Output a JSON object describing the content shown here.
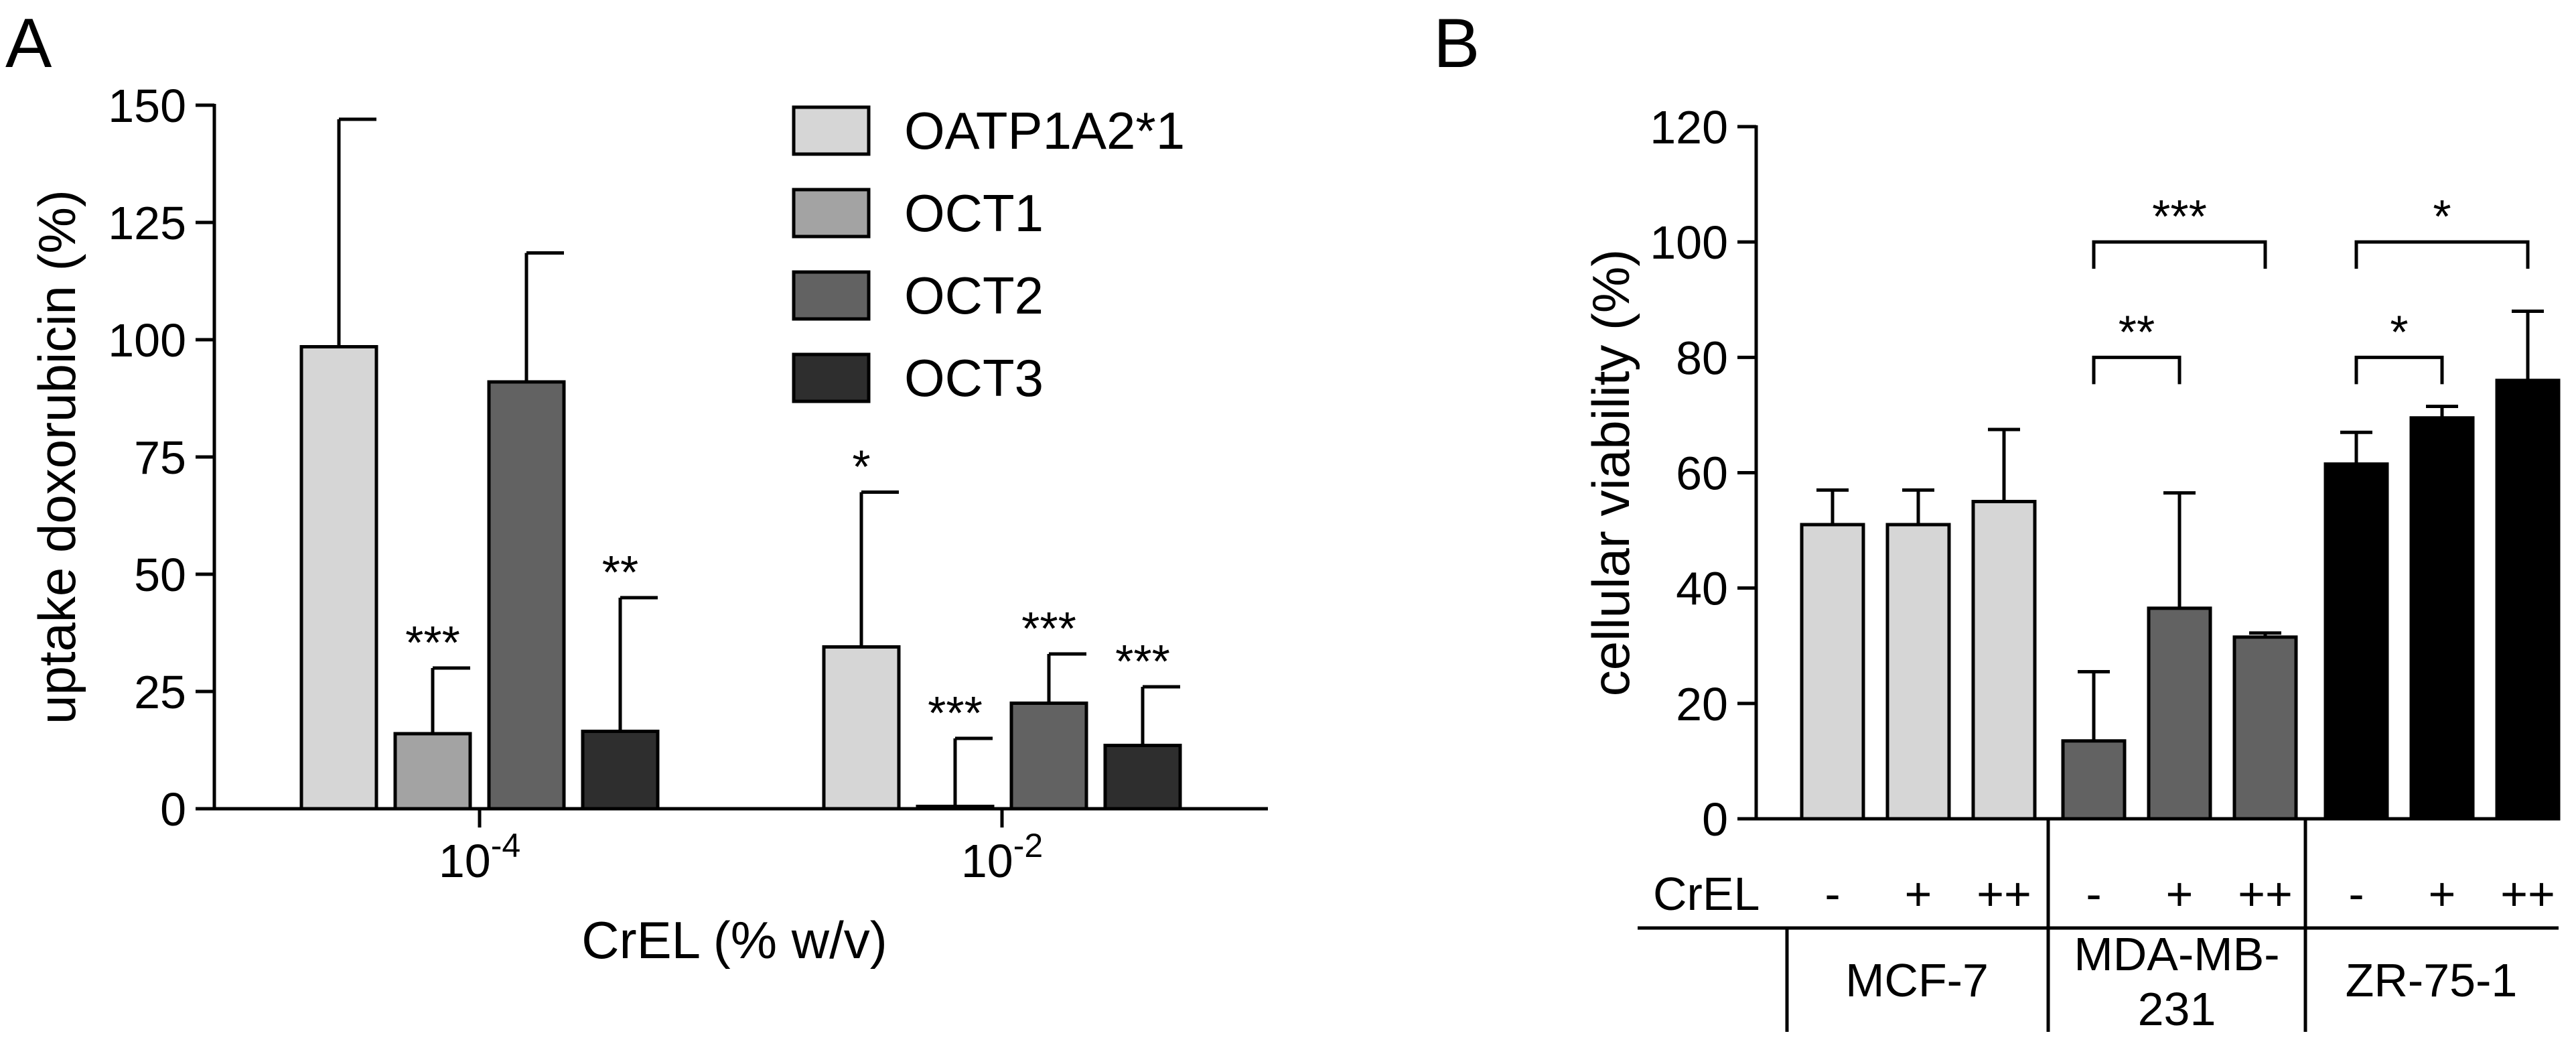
{
  "panels": {
    "a": {
      "letter": "A"
    },
    "b": {
      "letter": "B"
    }
  },
  "colors": {
    "OATP1A2*1": "#d6d6d6",
    "OCT1": "#a3a3a3",
    "OCT2": "#626262",
    "OCT3": "#2e2e2e",
    "MCF-7": "#d6d6d6",
    "MDA-MB-231": "#626262",
    "ZR-75-1": "#000000"
  },
  "chart_data": [
    {
      "type": "bar",
      "panel": "A",
      "xlabel": "CrEL (% w/v)",
      "ylabel": "uptake doxorubicin (%)",
      "ylim": [
        0,
        150
      ],
      "yticks": [
        "0",
        "25",
        "50",
        "75",
        "100",
        "125",
        "150"
      ],
      "categories": [
        {
          "base": "10",
          "exp": "-4"
        },
        {
          "base": "10",
          "exp": "-2"
        }
      ],
      "legend_position": "top-right",
      "series": [
        {
          "name": "OATP1A2*1",
          "values": [
            98.5,
            34.5
          ],
          "errors": [
            48.5,
            33
          ],
          "sig": [
            "",
            "*"
          ]
        },
        {
          "name": "OCT1",
          "values": [
            16,
            0.5
          ],
          "errors": [
            14,
            14.5
          ],
          "sig": [
            "***",
            "***"
          ]
        },
        {
          "name": "OCT2",
          "values": [
            91,
            22.5
          ],
          "errors": [
            27.5,
            10.5
          ],
          "sig": [
            "",
            "***"
          ]
        },
        {
          "name": "OCT3",
          "values": [
            16.5,
            13.5
          ],
          "errors": [
            28.5,
            12.5
          ],
          "sig": [
            "**",
            "***"
          ]
        }
      ]
    },
    {
      "type": "bar",
      "panel": "B",
      "ylabel": "cellular viability (%)",
      "ylim": [
        0,
        120
      ],
      "yticks": [
        "0",
        "20",
        "40",
        "60",
        "80",
        "100",
        "120"
      ],
      "row_label": "CrEL",
      "groups": [
        {
          "name": "MCF-7",
          "lines": [
            "MCF-7"
          ],
          "color_key": "MCF-7",
          "bars": [
            {
              "label": "-",
              "value": 51,
              "error": 6
            },
            {
              "label": "+",
              "value": 51,
              "error": 6
            },
            {
              "label": "++",
              "value": 55,
              "error": 12.5
            }
          ]
        },
        {
          "name": "MDA-MB-231",
          "lines": [
            "MDA-MB-",
            "231"
          ],
          "color_key": "MDA-MB-231",
          "bars": [
            {
              "label": "-",
              "value": 13.5,
              "error": 12
            },
            {
              "label": "+",
              "value": 36.5,
              "error": 20
            },
            {
              "label": "++",
              "value": 31.5,
              "error": 0.7
            }
          ]
        },
        {
          "name": "ZR-75-1",
          "lines": [
            "ZR-75-1"
          ],
          "color_key": "ZR-75-1",
          "bars": [
            {
              "label": "-",
              "value": 61.5,
              "error": 5.5
            },
            {
              "label": "+",
              "value": 69.5,
              "error": 2
            },
            {
              "label": "++",
              "value": 76,
              "error": 12
            }
          ]
        }
      ],
      "comparisons": [
        {
          "group": 1,
          "from": 0,
          "to": 1,
          "y": 80,
          "label": "**"
        },
        {
          "group": 1,
          "from": 0,
          "to": 2,
          "y": 100,
          "label": "***"
        },
        {
          "group": 2,
          "from": 0,
          "to": 1,
          "y": 80,
          "label": "*"
        },
        {
          "group": 2,
          "from": 0,
          "to": 2,
          "y": 100,
          "label": "*"
        }
      ]
    }
  ]
}
